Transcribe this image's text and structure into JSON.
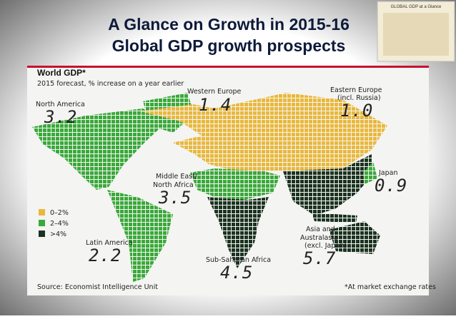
{
  "slide": {
    "title_line1": "A Glance on Growth in 2015-16",
    "title_line2": "Global GDP growth prospects",
    "thumbnail_caption": "GLOBAL GDP at a Glance"
  },
  "map": {
    "title": "World GDP*",
    "subtitle": "2015 forecast, % increase on a year earlier",
    "regions": [
      {
        "name": "North America",
        "value": "3.2"
      },
      {
        "name": "Western Europe",
        "value": "1.4"
      },
      {
        "name": "Eastern Europe",
        "note": "(incl. Russia)",
        "value": "1.0"
      },
      {
        "name_line1": "Middle East/",
        "name_line2": "North Africa",
        "value": "3.5"
      },
      {
        "name": "Japan",
        "value": "0.9"
      },
      {
        "name": "Latin America",
        "value": "2.2"
      },
      {
        "name_line1": "Asia and",
        "name_line2": "Australasia",
        "note": "(excl. Japan)",
        "value": "5.7"
      },
      {
        "name": "Sub-Saharan Africa",
        "value": "4.5"
      }
    ],
    "legend": [
      "0–2%",
      "2–4%",
      ">4%"
    ],
    "source": "Source: Economist Intelligence Unit",
    "footnote": "*At market exchange rates"
  }
}
